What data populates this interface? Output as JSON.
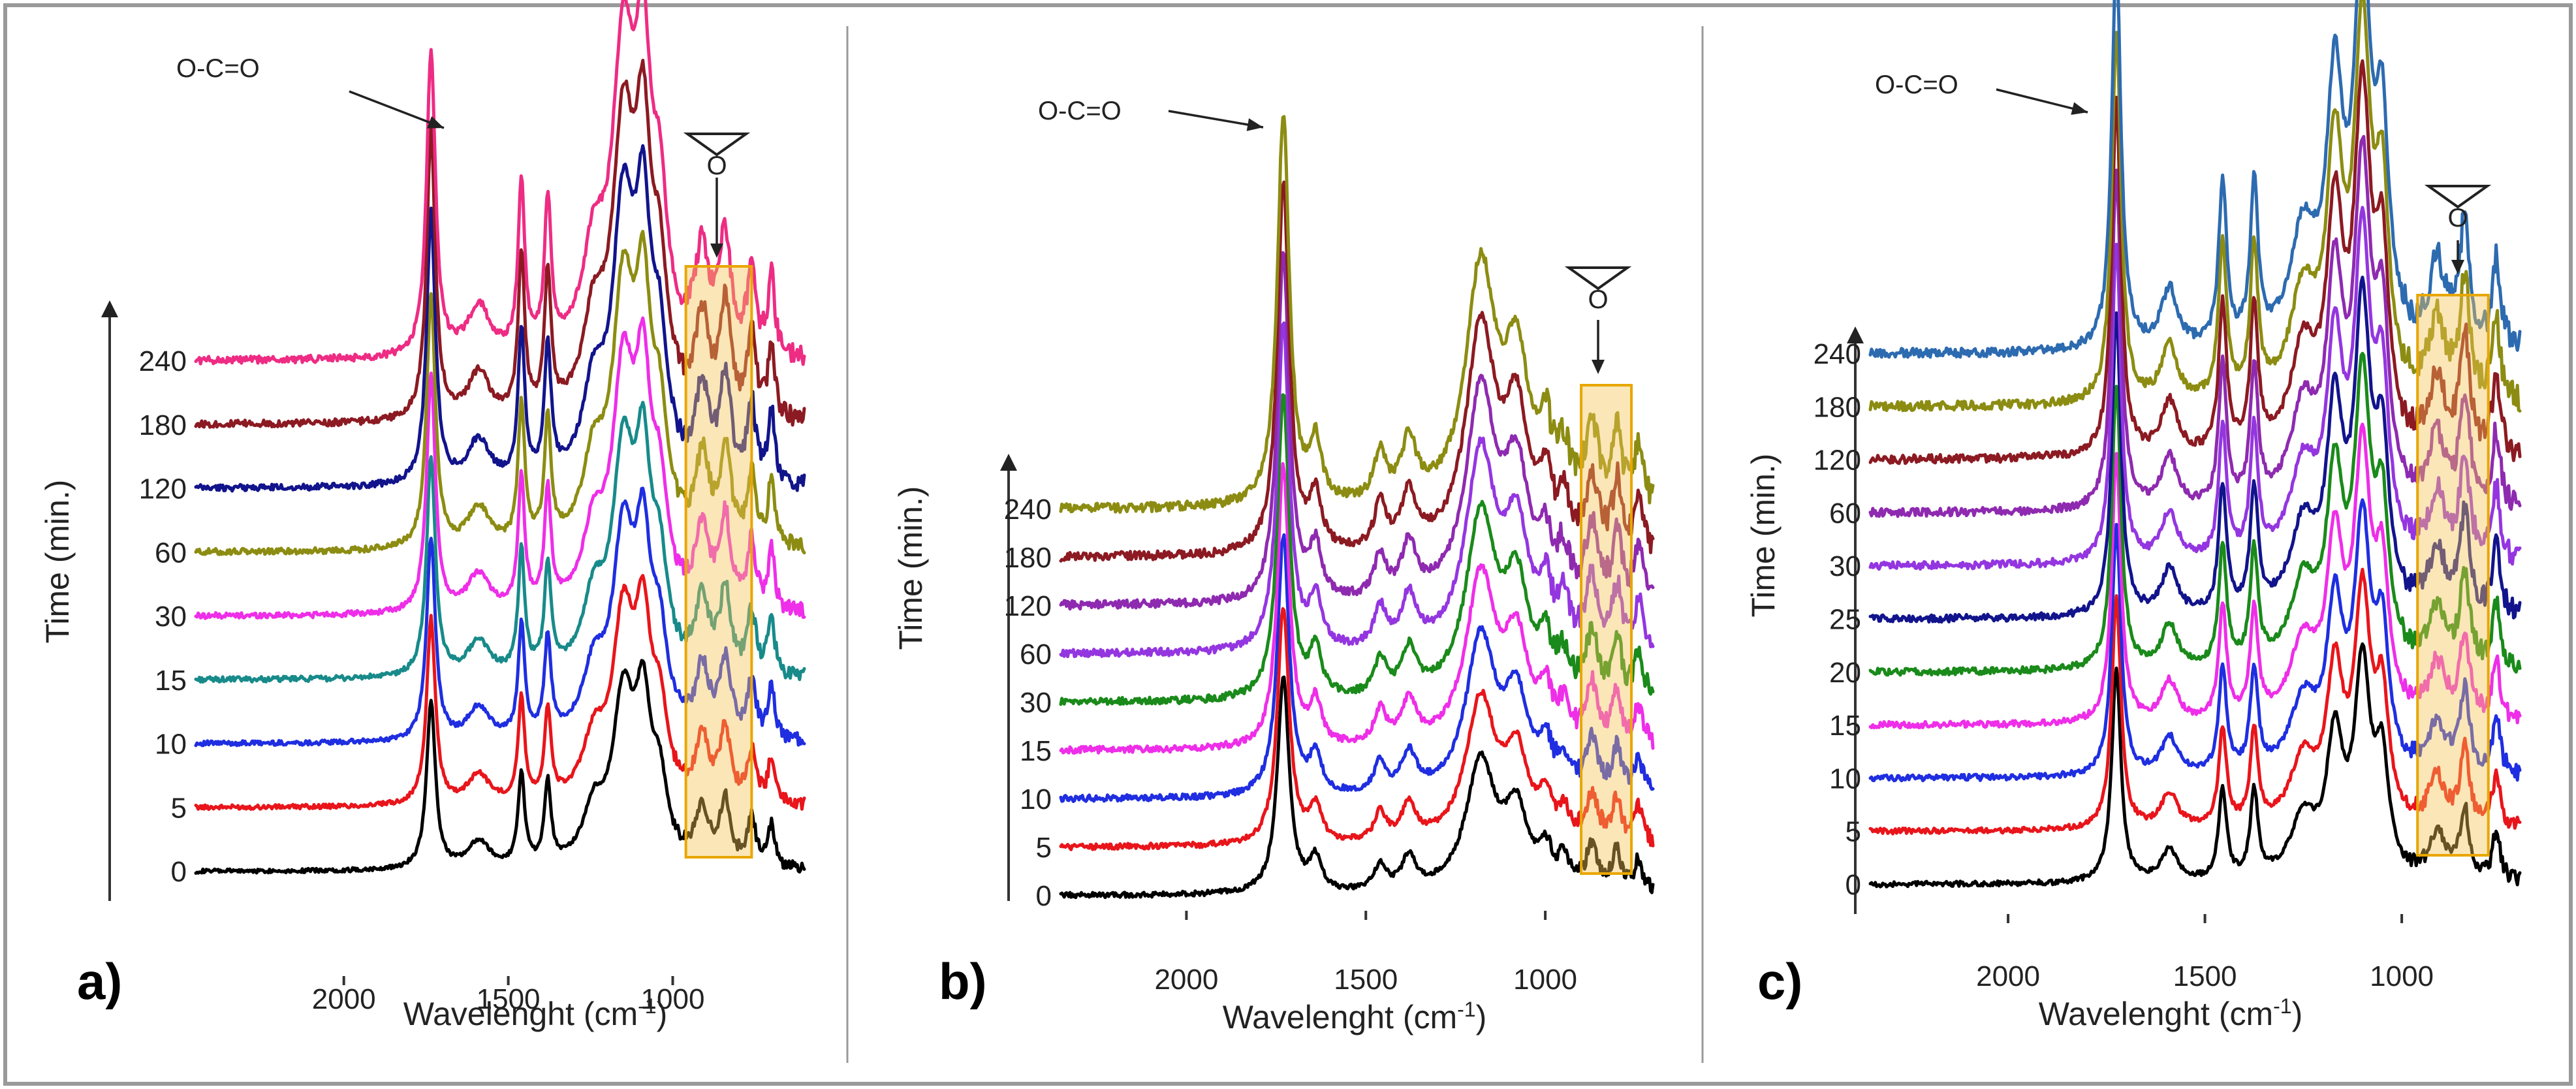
{
  "figure": {
    "border_color": "#9a9a9a",
    "highlight_color": "#f5c453"
  },
  "chart_data": [
    {
      "type": "line",
      "panel_label": "a)",
      "xlabel": "Wavelenght (cm-1)",
      "ylabel": "Time (min.)",
      "xlim": [
        2450,
        600
      ],
      "x_ticks": [
        2000,
        1500,
        1000
      ],
      "y_offset_labels": [
        "0",
        "5",
        "10",
        "15",
        "30",
        "60",
        "120",
        "180",
        "240"
      ],
      "series_colors": [
        "#000000",
        "#e8151b",
        "#1f2ee0",
        "#188a8a",
        "#ee2ee8",
        "#8c8c12",
        "#12148c",
        "#8c1a22",
        "#ee2c84"
      ],
      "annotation": "O-C=O",
      "epoxide_symbol": "O",
      "highlight_band": [
        960,
        760
      ],
      "peaks": [
        {
          "center": 1735,
          "width": 16,
          "height": 1.0
        },
        {
          "center": 1590,
          "width": 40,
          "height": 0.16
        },
        {
          "center": 1460,
          "width": 12,
          "height": 0.55
        },
        {
          "center": 1380,
          "width": 12,
          "height": 0.48
        },
        {
          "center": 1240,
          "width": 40,
          "height": 0.3
        },
        {
          "center": 1150,
          "width": 40,
          "height": 0.95
        },
        {
          "center": 1090,
          "width": 28,
          "height": 0.82
        },
        {
          "center": 1040,
          "width": 28,
          "height": 0.42
        },
        {
          "center": 910,
          "width": 25,
          "height": 0.32
        },
        {
          "center": 840,
          "width": 20,
          "height": 0.37
        },
        {
          "center": 760,
          "width": 15,
          "height": 0.28
        },
        {
          "center": 700,
          "width": 12,
          "height": 0.25
        }
      ]
    },
    {
      "type": "line",
      "panel_label": "b)",
      "xlabel": "Wavelenght (cm-1)",
      "ylabel": "Time (min.)",
      "xlim": [
        2350,
        700
      ],
      "x_ticks": [
        2000,
        1500,
        1000
      ],
      "y_offset_labels": [
        "0",
        "5",
        "10",
        "15",
        "30",
        "60",
        "120",
        "180",
        "240"
      ],
      "series_colors": [
        "#000000",
        "#e8151b",
        "#1f2ee0",
        "#ee2ee8",
        "#1a8a1a",
        "#9436e0",
        "#8e2ab0",
        "#8c1a22",
        "#8c8c12"
      ],
      "annotation": "O-C=O",
      "epoxide_symbol": "O",
      "highlight_band": [
        900,
        760
      ],
      "peaks": [
        {
          "center": 1730,
          "width": 20,
          "height": 1.0
        },
        {
          "center": 1640,
          "width": 20,
          "height": 0.15
        },
        {
          "center": 1460,
          "width": 20,
          "height": 0.12
        },
        {
          "center": 1380,
          "width": 25,
          "height": 0.15
        },
        {
          "center": 1180,
          "width": 50,
          "height": 0.6
        },
        {
          "center": 1080,
          "width": 40,
          "height": 0.35
        },
        {
          "center": 1000,
          "width": 20,
          "height": 0.15
        },
        {
          "center": 950,
          "width": 20,
          "height": 0.12
        },
        {
          "center": 870,
          "width": 20,
          "height": 0.2
        },
        {
          "center": 800,
          "width": 15,
          "height": 0.18
        },
        {
          "center": 740,
          "width": 15,
          "height": 0.14
        }
      ]
    },
    {
      "type": "line",
      "panel_label": "c)",
      "xlabel": "Wavelenght (cm-1)",
      "ylabel": "Time (min.)",
      "xlim": [
        2350,
        700
      ],
      "x_ticks": [
        2000,
        1500,
        1000
      ],
      "y_offset_labels": [
        "0",
        "5",
        "10",
        "15",
        "20",
        "25",
        "30",
        "60",
        "120",
        "180",
        "240"
      ],
      "series_colors": [
        "#000000",
        "#e8151b",
        "#1f2ee0",
        "#ee2ee8",
        "#1a8a1a",
        "#12148c",
        "#9436e0",
        "#8e2ab0",
        "#8c1a22",
        "#8c8c12",
        "#2d6bb0"
      ],
      "annotation": "O-C=O",
      "epoxide_symbol": "O",
      "highlight_band": [
        960,
        780
      ],
      "peaks": [
        {
          "center": 1725,
          "width": 14,
          "height": 1.0
        },
        {
          "center": 1590,
          "width": 25,
          "height": 0.15
        },
        {
          "center": 1455,
          "width": 12,
          "height": 0.42
        },
        {
          "center": 1375,
          "width": 12,
          "height": 0.4
        },
        {
          "center": 1250,
          "width": 40,
          "height": 0.28
        },
        {
          "center": 1170,
          "width": 25,
          "height": 0.62
        },
        {
          "center": 1100,
          "width": 25,
          "height": 0.95
        },
        {
          "center": 1050,
          "width": 20,
          "height": 0.5
        },
        {
          "center": 910,
          "width": 25,
          "height": 0.2
        },
        {
          "center": 840,
          "width": 15,
          "height": 0.32
        },
        {
          "center": 760,
          "width": 12,
          "height": 0.22
        }
      ]
    }
  ]
}
